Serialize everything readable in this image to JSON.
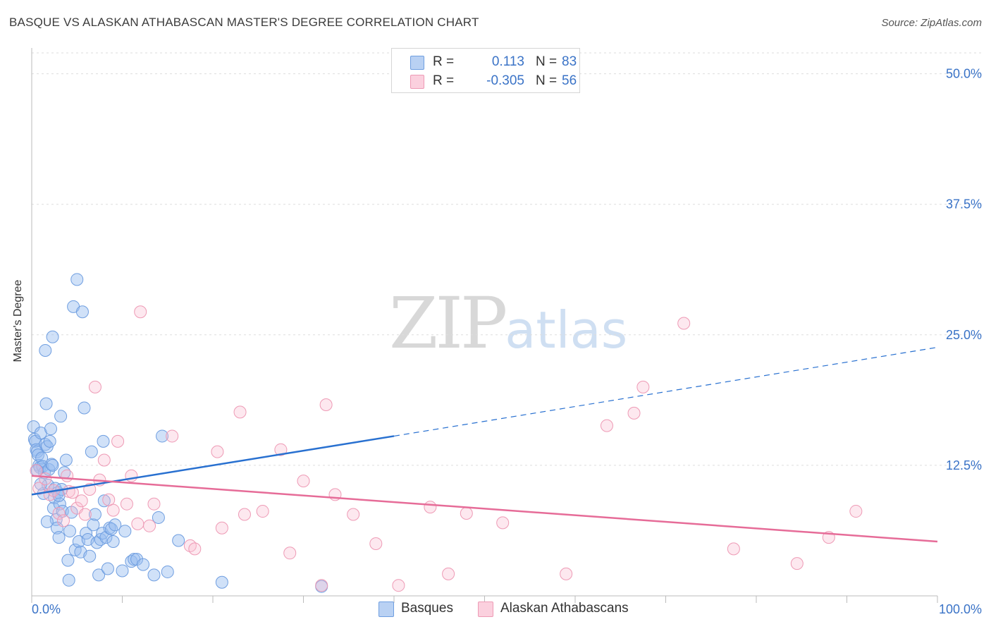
{
  "title": "BASQUE VS ALASKAN ATHABASCAN MASTER'S DEGREE CORRELATION CHART",
  "source": "Source: ZipAtlas.com",
  "watermark": {
    "zip": "ZIP",
    "atlas": "atlas"
  },
  "legend": {
    "rows": [
      {
        "r_label": "R =",
        "r_value": "0.113",
        "n_label": "N =",
        "n_value": "83"
      },
      {
        "r_label": "R =",
        "r_value": "-0.305",
        "n_label": "N =",
        "n_value": "56"
      }
    ]
  },
  "bottom_legend": [
    "Basques",
    "Alaskan Athabascans"
  ],
  "chart_data": {
    "type": "scatter",
    "title": "BASQUE VS ALASKAN ATHABASCAN MASTER'S DEGREE CORRELATION CHART",
    "xlabel": "",
    "ylabel": "Master's Degree",
    "xlim": [
      0,
      100
    ],
    "ylim": [
      0,
      52
    ],
    "x_tick_labels": [
      "0.0%",
      "100.0%"
    ],
    "y_ticks": [
      12.5,
      25.0,
      37.5,
      50.0
    ],
    "y_tick_labels": [
      "12.5%",
      "25.0%",
      "37.5%",
      "50.0%"
    ],
    "grid": true,
    "colors": {
      "basques": "#6f9ee0",
      "athabascans": "#ee9ab5",
      "basques_line": "#2870d0",
      "athabascans_line": "#e66c98",
      "tick_text": "#3a73c7"
    },
    "series": [
      {
        "name": "Basques",
        "trend": {
          "x0": 0,
          "y0": 9.7,
          "x1": 40,
          "y1": 15.3,
          "dashed_to_x": 100,
          "dashed_to_y": 23.8
        },
        "points": [
          [
            0.2,
            16.2
          ],
          [
            0.3,
            15.0
          ],
          [
            0.4,
            14.8
          ],
          [
            0.5,
            14.0
          ],
          [
            0.6,
            13.8
          ],
          [
            0.7,
            13.5
          ],
          [
            0.8,
            12.5
          ],
          [
            0.9,
            12.3
          ],
          [
            1.0,
            15.6
          ],
          [
            1.1,
            13.2
          ],
          [
            1.2,
            12.4
          ],
          [
            1.3,
            9.8
          ],
          [
            1.4,
            11.8
          ],
          [
            1.5,
            14.5
          ],
          [
            1.6,
            18.4
          ],
          [
            1.7,
            14.3
          ],
          [
            1.8,
            10.6
          ],
          [
            1.9,
            12.1
          ],
          [
            2.0,
            14.8
          ],
          [
            2.1,
            16.0
          ],
          [
            2.2,
            12.6
          ],
          [
            2.4,
            8.4
          ],
          [
            2.5,
            9.4
          ],
          [
            2.6,
            10.3
          ],
          [
            2.7,
            7.3
          ],
          [
            2.8,
            6.5
          ],
          [
            2.9,
            9.9
          ],
          [
            3.0,
            5.6
          ],
          [
            3.1,
            8.8
          ],
          [
            3.2,
            17.2
          ],
          [
            3.3,
            10.2
          ],
          [
            3.4,
            8.1
          ],
          [
            3.6,
            11.8
          ],
          [
            3.8,
            13.0
          ],
          [
            4.0,
            3.4
          ],
          [
            4.1,
            1.5
          ],
          [
            4.2,
            6.2
          ],
          [
            4.4,
            8.0
          ],
          [
            4.6,
            27.7
          ],
          [
            4.8,
            4.4
          ],
          [
            5.0,
            30.3
          ],
          [
            5.2,
            5.2
          ],
          [
            5.4,
            4.2
          ],
          [
            5.6,
            27.2
          ],
          [
            5.8,
            18.0
          ],
          [
            6.0,
            6.0
          ],
          [
            6.2,
            5.4
          ],
          [
            6.4,
            3.8
          ],
          [
            6.6,
            13.8
          ],
          [
            6.8,
            6.8
          ],
          [
            7.0,
            7.8
          ],
          [
            7.2,
            5.1
          ],
          [
            7.4,
            2.0
          ],
          [
            7.6,
            5.4
          ],
          [
            7.8,
            6.0
          ],
          [
            8.0,
            9.1
          ],
          [
            8.2,
            5.6
          ],
          [
            8.4,
            2.6
          ],
          [
            8.6,
            6.5
          ],
          [
            8.8,
            6.4
          ],
          [
            9.0,
            5.2
          ],
          [
            9.2,
            6.8
          ],
          [
            10.0,
            2.4
          ],
          [
            10.3,
            6.2
          ],
          [
            11.0,
            3.3
          ],
          [
            11.3,
            3.5
          ],
          [
            11.6,
            3.5
          ],
          [
            12.3,
            3.0
          ],
          [
            13.5,
            2.0
          ],
          [
            14.0,
            7.5
          ],
          [
            15.0,
            2.3
          ],
          [
            16.2,
            5.3
          ],
          [
            2.3,
            24.8
          ],
          [
            1.5,
            23.5
          ],
          [
            7.9,
            14.8
          ],
          [
            14.4,
            15.3
          ],
          [
            21.0,
            1.3
          ],
          [
            32.0,
            0.9
          ],
          [
            0.6,
            12.0
          ],
          [
            1.0,
            10.7
          ],
          [
            1.7,
            7.1
          ],
          [
            2.3,
            12.5
          ],
          [
            3.0,
            9.6
          ]
        ]
      },
      {
        "name": "Alaskan Athabascans",
        "trend": {
          "x0": 0,
          "y0": 11.5,
          "x1": 100,
          "y1": 5.2
        },
        "points": [
          [
            0.5,
            12.0
          ],
          [
            0.8,
            10.3
          ],
          [
            1.5,
            11.2
          ],
          [
            2.0,
            9.7
          ],
          [
            2.4,
            10.1
          ],
          [
            3.0,
            7.9
          ],
          [
            3.5,
            7.2
          ],
          [
            3.9,
            11.5
          ],
          [
            4.1,
            10.0
          ],
          [
            4.5,
            9.9
          ],
          [
            5.0,
            8.4
          ],
          [
            5.5,
            9.1
          ],
          [
            5.9,
            7.8
          ],
          [
            6.4,
            10.2
          ],
          [
            7.0,
            20.0
          ],
          [
            7.5,
            11.1
          ],
          [
            8.0,
            13.0
          ],
          [
            8.5,
            9.2
          ],
          [
            9.0,
            8.2
          ],
          [
            9.5,
            14.8
          ],
          [
            10.5,
            8.8
          ],
          [
            11.0,
            11.5
          ],
          [
            11.7,
            6.9
          ],
          [
            12.0,
            27.2
          ],
          [
            13.0,
            6.7
          ],
          [
            13.5,
            8.8
          ],
          [
            15.5,
            15.3
          ],
          [
            17.5,
            4.8
          ],
          [
            18.0,
            4.5
          ],
          [
            20.5,
            13.8
          ],
          [
            21.0,
            6.5
          ],
          [
            23.0,
            17.6
          ],
          [
            23.5,
            7.8
          ],
          [
            25.5,
            8.1
          ],
          [
            27.5,
            14.0
          ],
          [
            28.5,
            4.1
          ],
          [
            30.0,
            11.0
          ],
          [
            32.0,
            1.0
          ],
          [
            32.5,
            18.3
          ],
          [
            33.5,
            9.7
          ],
          [
            35.5,
            7.8
          ],
          [
            38.0,
            5.0
          ],
          [
            40.5,
            1.0
          ],
          [
            44.0,
            8.5
          ],
          [
            46.0,
            2.1
          ],
          [
            48.0,
            7.9
          ],
          [
            52.0,
            7.0
          ],
          [
            59.0,
            2.1
          ],
          [
            63.5,
            16.3
          ],
          [
            66.5,
            17.5
          ],
          [
            67.5,
            20.0
          ],
          [
            72.0,
            26.1
          ],
          [
            77.5,
            4.5
          ],
          [
            84.5,
            3.1
          ],
          [
            88.0,
            5.6
          ],
          [
            91.0,
            8.1
          ]
        ]
      }
    ]
  }
}
